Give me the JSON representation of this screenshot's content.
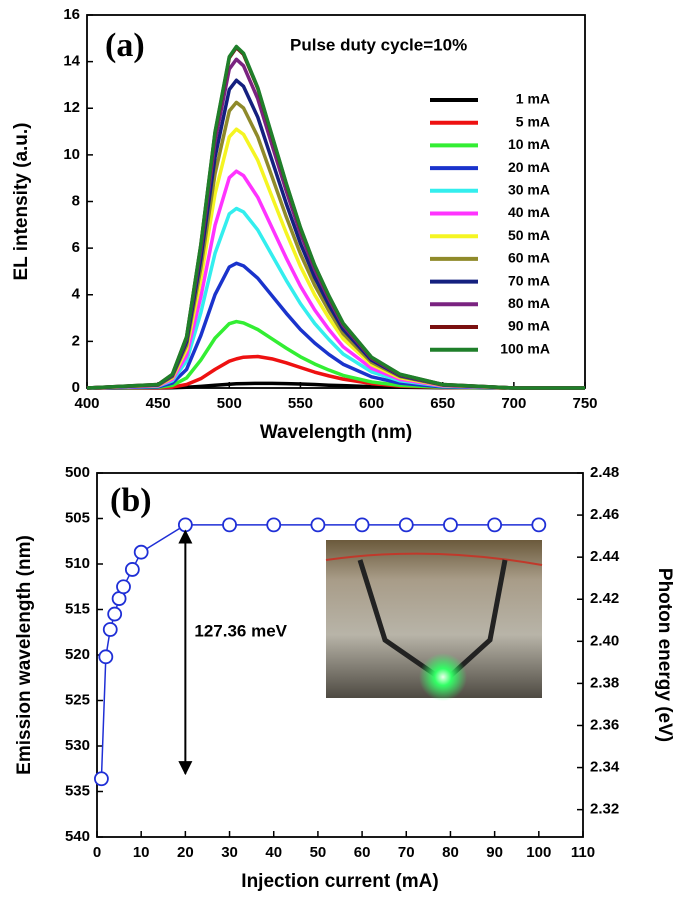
{
  "chart_data": [
    {
      "type": "line",
      "panel_label": "(a)",
      "title": "Pulse duty cycle=10%",
      "x_label": "Wavelength (nm)",
      "y_label": "EL intensity (a.u.)",
      "xlim": [
        400,
        750
      ],
      "xticks": [
        400,
        450,
        500,
        550,
        600,
        650,
        700,
        750
      ],
      "ylim": [
        0,
        16
      ],
      "yticks": [
        0,
        2,
        4,
        6,
        8,
        10,
        12,
        14,
        16
      ],
      "legend": "upper right",
      "x": [
        400,
        450,
        460,
        470,
        480,
        490,
        500,
        505,
        510,
        520,
        530,
        540,
        550,
        560,
        570,
        580,
        600,
        620,
        650,
        700,
        750
      ],
      "series": [
        {
          "name": "1 mA",
          "color": "#000000",
          "values": [
            0,
            0,
            0.01,
            0.03,
            0.07,
            0.12,
            0.16,
            0.18,
            0.19,
            0.2,
            0.2,
            0.19,
            0.17,
            0.15,
            0.12,
            0.1,
            0.06,
            0.03,
            0.01,
            0,
            0
          ]
        },
        {
          "name": "5 mA",
          "color": "#ee1111",
          "values": [
            0,
            0.01,
            0.04,
            0.15,
            0.4,
            0.8,
            1.15,
            1.25,
            1.32,
            1.35,
            1.25,
            1.08,
            0.88,
            0.68,
            0.52,
            0.38,
            0.19,
            0.08,
            0.02,
            0,
            0
          ]
        },
        {
          "name": "10 mA",
          "color": "#33ee33",
          "values": [
            0,
            0.03,
            0.11,
            0.43,
            1.2,
            2.14,
            2.76,
            2.85,
            2.79,
            2.51,
            2.11,
            1.71,
            1.34,
            1.03,
            0.77,
            0.54,
            0.26,
            0.11,
            0.03,
            0,
            0
          ]
        },
        {
          "name": "20 mA",
          "color": "#1a33cc",
          "values": [
            0,
            0.05,
            0.21,
            0.8,
            2.25,
            4.01,
            5.19,
            5.35,
            5.24,
            4.71,
            3.96,
            3.21,
            2.51,
            1.93,
            1.44,
            1.02,
            0.48,
            0.21,
            0.05,
            0,
            0
          ]
        },
        {
          "name": "30 mA",
          "color": "#33eeee",
          "values": [
            0,
            0.08,
            0.31,
            1.16,
            3.23,
            5.78,
            7.47,
            7.7,
            7.55,
            6.78,
            5.7,
            4.62,
            3.62,
            2.77,
            2.08,
            1.46,
            0.69,
            0.31,
            0.08,
            0,
            0
          ]
        },
        {
          "name": "40 mA",
          "color": "#ff33ff",
          "values": [
            0,
            0.09,
            0.37,
            1.4,
            3.91,
            6.98,
            9.02,
            9.3,
            9.11,
            8.18,
            6.88,
            5.58,
            4.37,
            3.35,
            2.51,
            1.77,
            0.84,
            0.37,
            0.09,
            0,
            0
          ]
        },
        {
          "name": "50 mA",
          "color": "#f5f522",
          "values": [
            0,
            0.11,
            0.44,
            1.67,
            4.66,
            8.33,
            10.77,
            11.1,
            10.88,
            9.77,
            8.21,
            6.66,
            5.22,
            4.0,
            3.0,
            2.11,
            1.0,
            0.44,
            0.11,
            0,
            0
          ]
        },
        {
          "name": "60 mA",
          "color": "#8f8a2a",
          "values": [
            0,
            0.12,
            0.49,
            1.84,
            5.15,
            9.19,
            11.88,
            12.25,
            12.01,
            10.78,
            9.07,
            7.35,
            5.76,
            4.41,
            3.31,
            2.33,
            1.1,
            0.49,
            0.12,
            0,
            0
          ]
        },
        {
          "name": "70 mA",
          "color": "#14207f",
          "values": [
            0,
            0.13,
            0.53,
            1.98,
            5.54,
            9.9,
            12.8,
            13.2,
            12.94,
            11.62,
            9.77,
            7.92,
            6.2,
            4.75,
            3.56,
            2.51,
            1.19,
            0.53,
            0.13,
            0,
            0
          ]
        },
        {
          "name": "80 mA",
          "color": "#7a2380",
          "values": [
            0,
            0.14,
            0.56,
            2.12,
            5.92,
            10.58,
            13.68,
            14.1,
            13.82,
            12.41,
            10.43,
            8.46,
            6.63,
            5.08,
            3.81,
            2.68,
            1.27,
            0.56,
            0.14,
            0,
            0
          ]
        },
        {
          "name": "90 mA",
          "color": "#7a1010",
          "values": [
            0,
            0.15,
            0.58,
            2.19,
            6.13,
            10.95,
            14.16,
            14.6,
            14.31,
            12.85,
            10.8,
            8.76,
            6.86,
            5.26,
            3.94,
            2.77,
            1.31,
            0.58,
            0.15,
            0,
            0
          ]
        },
        {
          "name": "100 mA",
          "color": "#1f7f2a",
          "values": [
            0,
            0.15,
            0.59,
            2.2,
            6.15,
            10.99,
            14.21,
            14.65,
            14.36,
            12.89,
            10.84,
            8.79,
            6.89,
            5.27,
            3.96,
            2.78,
            1.32,
            0.59,
            0.15,
            0,
            0
          ]
        }
      ]
    },
    {
      "type": "line",
      "panel_label": "(b)",
      "annotation": "127.36 meV",
      "x_label": "Injection current (mA)",
      "y_label": "Emission wavelength (nm)",
      "y2_label": "Photon energy (eV)",
      "xlim": [
        0,
        110
      ],
      "xticks": [
        0,
        10,
        20,
        30,
        40,
        50,
        60,
        70,
        80,
        90,
        100,
        110
      ],
      "ylim": [
        540,
        500
      ],
      "yticks": [
        500,
        505,
        510,
        515,
        520,
        525,
        530,
        535,
        540
      ],
      "y2lim": [
        2.307,
        2.48
      ],
      "y2ticks": [
        2.32,
        2.34,
        2.36,
        2.38,
        {
          "value": 2.4,
          "label": "2.40"
        },
        2.42,
        2.44,
        2.46,
        2.48
      ],
      "marker": "open-circle",
      "x": [
        1,
        2,
        3,
        4,
        5,
        6,
        8,
        10,
        20,
        30,
        40,
        50,
        60,
        70,
        80,
        90,
        100
      ],
      "series": [
        {
          "color": "#1f2fd6",
          "values": [
            533.6,
            520.2,
            517.2,
            515.5,
            513.8,
            512.5,
            510.6,
            508.7,
            505.7,
            505.7,
            505.7,
            505.7,
            505.7,
            505.7,
            505.7,
            505.7,
            505.7
          ]
        }
      ]
    }
  ]
}
